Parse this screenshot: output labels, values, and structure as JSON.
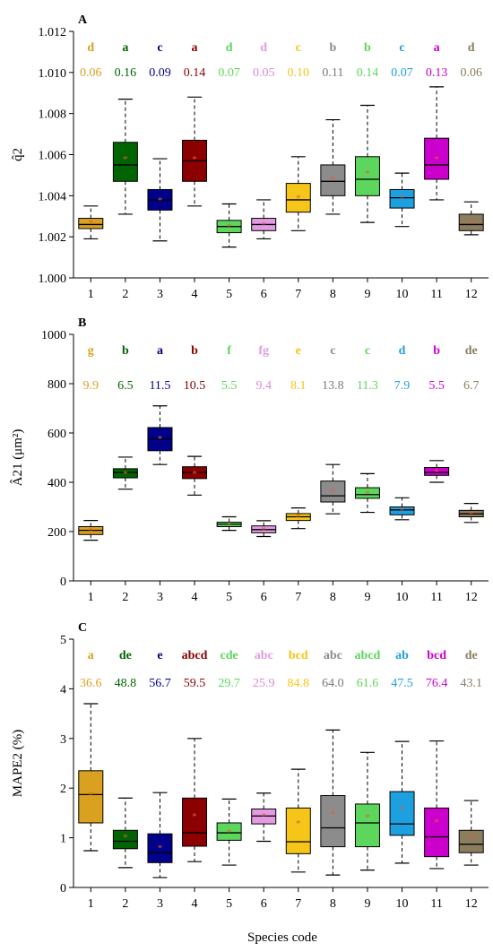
{
  "xlabel": "Species code",
  "chart_data": [
    {
      "type": "box",
      "panel_label": "A",
      "ylabel": "q̂2",
      "ylim": [
        1.0,
        1.012
      ],
      "yticks": [
        "1.000",
        "1.002",
        "1.004",
        "1.006",
        "1.008",
        "1.010",
        "1.012"
      ],
      "categories": [
        "1",
        "2",
        "3",
        "4",
        "5",
        "6",
        "7",
        "8",
        "9",
        "10",
        "11",
        "12"
      ],
      "letters": [
        "d",
        "a",
        "c",
        "a",
        "d",
        "d",
        "c",
        "b",
        "b",
        "c",
        "a",
        "d"
      ],
      "cv": [
        "0.06",
        "0.16",
        "0.09",
        "0.14",
        "0.07",
        "0.05",
        "0.10",
        "0.11",
        "0.14",
        "0.07",
        "0.13",
        "0.06"
      ],
      "boxes": [
        {
          "min": 1.0019,
          "q1": 1.0024,
          "median": 1.0026,
          "q3": 1.0029,
          "max": 1.0035,
          "mean": 1.0027
        },
        {
          "min": 1.0031,
          "q1": 1.0047,
          "median": 1.0055,
          "q3": 1.0066,
          "max": 1.0087,
          "mean": 1.0058
        },
        {
          "min": 1.0018,
          "q1": 1.0033,
          "median": 1.0038,
          "q3": 1.0043,
          "max": 1.0058,
          "mean": 1.0038
        },
        {
          "min": 1.0035,
          "q1": 1.0047,
          "median": 1.0057,
          "q3": 1.0067,
          "max": 1.0088,
          "mean": 1.0058
        },
        {
          "min": 1.0015,
          "q1": 1.0022,
          "median": 1.0025,
          "q3": 1.0028,
          "max": 1.0036,
          "mean": 1.0025
        },
        {
          "min": 1.0019,
          "q1": 1.0023,
          "median": 1.0026,
          "q3": 1.0029,
          "max": 1.0038,
          "mean": 1.0026
        },
        {
          "min": 1.0023,
          "q1": 1.0032,
          "median": 1.0038,
          "q3": 1.0046,
          "max": 1.0059,
          "mean": 1.0039
        },
        {
          "min": 1.0031,
          "q1": 1.004,
          "median": 1.0047,
          "q3": 1.0055,
          "max": 1.0077,
          "mean": 1.0048
        },
        {
          "min": 1.0027,
          "q1": 1.004,
          "median": 1.0048,
          "q3": 1.0059,
          "max": 1.0084,
          "mean": 1.0051
        },
        {
          "min": 1.0025,
          "q1": 1.0034,
          "median": 1.0039,
          "q3": 1.0043,
          "max": 1.0051,
          "mean": 1.0039
        },
        {
          "min": 1.0038,
          "q1": 1.0048,
          "median": 1.0055,
          "q3": 1.0068,
          "max": 1.0093,
          "mean": 1.0058
        },
        {
          "min": 1.0021,
          "q1": 1.0023,
          "median": 1.0026,
          "q3": 1.0031,
          "max": 1.0037,
          "mean": 1.0027
        }
      ]
    },
    {
      "type": "box",
      "panel_label": "B",
      "ylabel": "Â21 (μm²)",
      "ylim": [
        0,
        1000
      ],
      "yticks": [
        "0",
        "200",
        "400",
        "600",
        "800",
        "1000"
      ],
      "categories": [
        "1",
        "2",
        "3",
        "4",
        "5",
        "6",
        "7",
        "8",
        "9",
        "10",
        "11",
        "12"
      ],
      "letters": [
        "g",
        "b",
        "a",
        "b",
        "f",
        "fg",
        "e",
        "c",
        "c",
        "d",
        "b",
        "de"
      ],
      "cv": [
        "9.9",
        "6.5",
        "11.5",
        "10.5",
        "5.5",
        "9.4",
        "8.1",
        "13.8",
        "11.3",
        "7.9",
        "5.5",
        "6.7"
      ],
      "boxes": [
        {
          "min": 165,
          "q1": 188,
          "median": 205,
          "q3": 220,
          "max": 245,
          "mean": 205
        },
        {
          "min": 372,
          "q1": 418,
          "median": 440,
          "q3": 455,
          "max": 502,
          "mean": 437
        },
        {
          "min": 472,
          "q1": 528,
          "median": 575,
          "q3": 622,
          "max": 710,
          "mean": 578
        },
        {
          "min": 348,
          "q1": 415,
          "median": 440,
          "q3": 463,
          "max": 505,
          "mean": 437
        },
        {
          "min": 205,
          "q1": 220,
          "median": 230,
          "q3": 238,
          "max": 260,
          "mean": 230
        },
        {
          "min": 180,
          "q1": 195,
          "median": 208,
          "q3": 223,
          "max": 244,
          "mean": 210
        },
        {
          "min": 212,
          "q1": 245,
          "median": 260,
          "q3": 273,
          "max": 296,
          "mean": 260
        },
        {
          "min": 272,
          "q1": 320,
          "median": 345,
          "q3": 405,
          "max": 472,
          "mean": 362
        },
        {
          "min": 278,
          "q1": 335,
          "median": 350,
          "q3": 378,
          "max": 435,
          "mean": 355
        },
        {
          "min": 248,
          "q1": 268,
          "median": 288,
          "q3": 300,
          "max": 337,
          "mean": 287
        },
        {
          "min": 400,
          "q1": 428,
          "median": 440,
          "q3": 460,
          "max": 488,
          "mean": 443
        },
        {
          "min": 237,
          "q1": 260,
          "median": 272,
          "q3": 286,
          "max": 314,
          "mean": 273
        }
      ]
    },
    {
      "type": "box",
      "panel_label": "C",
      "ylabel": "MAPE2 (%)",
      "ylim": [
        0,
        5
      ],
      "yticks": [
        "0",
        "1",
        "2",
        "3",
        "4",
        "5"
      ],
      "categories": [
        "1",
        "2",
        "3",
        "4",
        "5",
        "6",
        "7",
        "8",
        "9",
        "10",
        "11",
        "12"
      ],
      "letters": [
        "a",
        "de",
        "e",
        "abcd",
        "cde",
        "abc",
        "bcd",
        "abc",
        "abcd",
        "ab",
        "bcd",
        "de"
      ],
      "cv": [
        "36.6",
        "48.8",
        "56.7",
        "59.5",
        "29.7",
        "25.9",
        "84.8",
        "64.0",
        "61.6",
        "47.5",
        "76.4",
        "43.1"
      ],
      "boxes": [
        {
          "min": 0.74,
          "q1": 1.3,
          "median": 1.87,
          "q3": 2.35,
          "max": 3.7,
          "mean": 1.87
        },
        {
          "min": 0.4,
          "q1": 0.78,
          "median": 0.93,
          "q3": 1.15,
          "max": 1.8,
          "mean": 1.02
        },
        {
          "min": 0.2,
          "q1": 0.5,
          "median": 0.7,
          "q3": 1.08,
          "max": 1.91,
          "mean": 0.8
        },
        {
          "min": 0.52,
          "q1": 0.83,
          "median": 1.1,
          "q3": 1.8,
          "max": 3.0,
          "mean": 1.44
        },
        {
          "min": 0.45,
          "q1": 0.95,
          "median": 1.1,
          "q3": 1.3,
          "max": 1.78,
          "mean": 1.12
        },
        {
          "min": 0.93,
          "q1": 1.28,
          "median": 1.44,
          "q3": 1.58,
          "max": 1.9,
          "mean": 1.44
        },
        {
          "min": 0.31,
          "q1": 0.68,
          "median": 0.92,
          "q3": 1.6,
          "max": 2.38,
          "mean": 1.3
        },
        {
          "min": 0.25,
          "q1": 0.82,
          "median": 1.2,
          "q3": 1.85,
          "max": 3.17,
          "mean": 1.49
        },
        {
          "min": 0.35,
          "q1": 0.82,
          "median": 1.3,
          "q3": 1.68,
          "max": 2.72,
          "mean": 1.43
        },
        {
          "min": 0.49,
          "q1": 1.05,
          "median": 1.28,
          "q3": 1.93,
          "max": 2.94,
          "mean": 1.57
        },
        {
          "min": 0.38,
          "q1": 0.62,
          "median": 1.02,
          "q3": 1.6,
          "max": 2.95,
          "mean": 1.33
        },
        {
          "min": 0.45,
          "q1": 0.7,
          "median": 0.87,
          "q3": 1.15,
          "max": 1.75,
          "mean": 1.0
        }
      ]
    }
  ],
  "colors": {
    "species": [
      "#DAA020",
      "#006400",
      "#00008B",
      "#8B0000",
      "#5CD65C",
      "#E39BE3",
      "#F5C517",
      "#8C8C8C",
      "#5CD65C",
      "#1E9FE0",
      "#CC00CC",
      "#8B7D5E"
    ],
    "cv_text": [
      "#DAA020",
      "#006400",
      "#00008B",
      "#8B0000",
      "#5CD65C",
      "#D98AD9",
      "#F5C517",
      "#7A7A7A",
      "#5CD65C",
      "#1E9FE0",
      "#CC00CC",
      "#8B7D5E"
    ],
    "mean_marker": "#E85A3A",
    "axis": "#000000"
  }
}
